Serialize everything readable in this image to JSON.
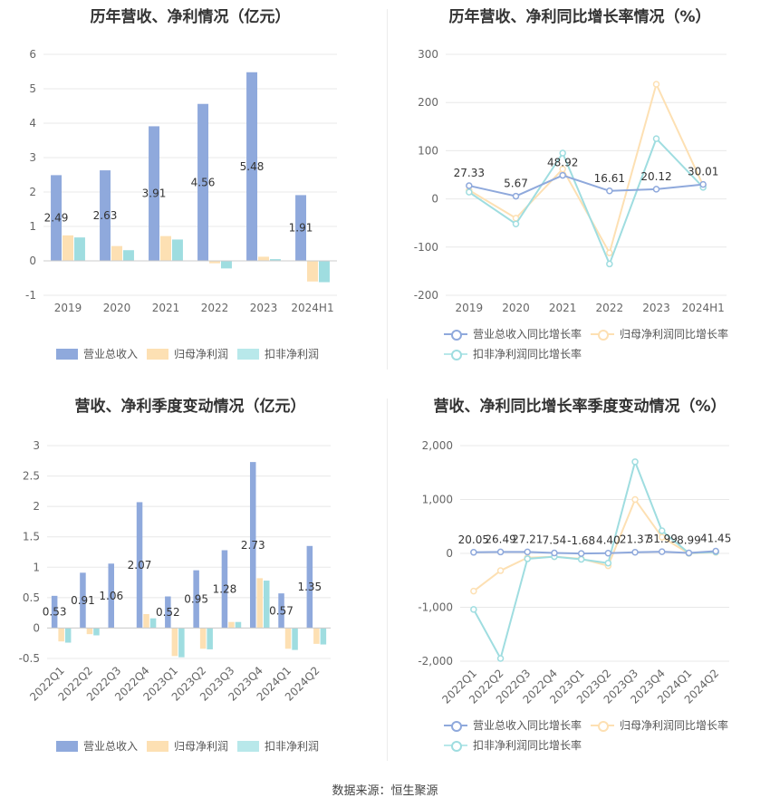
{
  "colors": {
    "revenue": "#8fa9dc",
    "profit": "#fde0b3",
    "deducted": "#9fdde0",
    "grid": "#e8e8e8",
    "axis": "#999999",
    "label": "#333333"
  },
  "source_note": "数据来源：恒生聚源",
  "chart_data": [
    {
      "id": "annual-amount",
      "type": "bar",
      "title": "历年营收、净利情况（亿元）",
      "categories": [
        "2019",
        "2020",
        "2021",
        "2022",
        "2023",
        "2024H1"
      ],
      "ylim": [
        -1,
        6
      ],
      "yticks": [
        -1,
        0,
        1,
        2,
        3,
        4,
        5,
        6
      ],
      "series": [
        {
          "name": "营业总收入",
          "values": [
            2.49,
            2.63,
            3.91,
            4.56,
            5.48,
            1.91
          ],
          "labels": [
            "2.49",
            "2.63",
            "3.91",
            "4.56",
            "5.48",
            "1.91"
          ]
        },
        {
          "name": "归母净利润",
          "values": [
            0.74,
            0.43,
            0.72,
            -0.07,
            0.12,
            -0.6
          ]
        },
        {
          "name": "扣非净利润",
          "values": [
            0.68,
            0.31,
            0.62,
            -0.22,
            0.05,
            -0.62
          ]
        }
      ],
      "legend": "bottom"
    },
    {
      "id": "annual-growth",
      "type": "line",
      "title": "历年营收、净利同比增长率情况（%）",
      "categories": [
        "2019",
        "2020",
        "2021",
        "2022",
        "2023",
        "2024H1"
      ],
      "ylim": [
        -200,
        300
      ],
      "yticks": [
        -200,
        -100,
        0,
        100,
        200,
        300
      ],
      "series": [
        {
          "name": "营业总收入同比增长率",
          "values": [
            27.33,
            5.67,
            48.92,
            16.61,
            20.12,
            30.01
          ],
          "labels": [
            "27.33",
            "5.67",
            "48.92",
            "16.61",
            "20.12",
            "30.01"
          ]
        },
        {
          "name": "归母净利润同比增长率",
          "values": [
            18,
            -40,
            62,
            -112,
            238,
            28
          ]
        },
        {
          "name": "扣非净利润同比增长率",
          "values": [
            14,
            -52,
            95,
            -135,
            125,
            24
          ]
        }
      ],
      "legend": "bottom"
    },
    {
      "id": "quarterly-amount",
      "type": "bar",
      "title": "营收、净利季度变动情况（亿元）",
      "categories": [
        "2022Q1",
        "2022Q2",
        "2022Q3",
        "2022Q4",
        "2023Q1",
        "2023Q2",
        "2023Q3",
        "2023Q4",
        "2024Q1",
        "2024Q2"
      ],
      "ylim": [
        -0.5,
        3
      ],
      "yticks": [
        -0.5,
        0,
        0.5,
        1,
        1.5,
        2,
        2.5,
        3
      ],
      "ytick_labels": [
        "-0.5",
        "0",
        "0.5",
        "1",
        "1.5",
        "2",
        "2.5",
        "3"
      ],
      "series": [
        {
          "name": "营业总收入",
          "values": [
            0.53,
            0.91,
            1.06,
            2.07,
            0.52,
            0.95,
            1.28,
            2.73,
            0.57,
            1.35
          ],
          "labels": [
            "0.53",
            "0.91",
            "1.06",
            "2.07",
            "0.52",
            "0.95",
            "1.28",
            "2.73",
            "0.57",
            "1.35"
          ]
        },
        {
          "name": "归母净利润",
          "values": [
            -0.22,
            -0.1,
            0.0,
            0.23,
            -0.46,
            -0.34,
            0.1,
            0.82,
            -0.34,
            -0.26
          ]
        },
        {
          "name": "扣非净利润",
          "values": [
            -0.24,
            -0.12,
            0.0,
            0.16,
            -0.48,
            -0.35,
            0.1,
            0.78,
            -0.36,
            -0.27
          ]
        }
      ],
      "legend": "bottom"
    },
    {
      "id": "quarterly-growth",
      "type": "line",
      "title": "营收、净利同比增长率季度变动情况（%）",
      "categories": [
        "2022Q1",
        "2022Q2",
        "2022Q3",
        "2022Q4",
        "2023Q1",
        "2023Q2",
        "2023Q3",
        "2023Q4",
        "2024Q1",
        "2024Q2"
      ],
      "ylim": [
        -2000,
        2000
      ],
      "yticks": [
        -2000,
        -1000,
        0,
        1000,
        2000
      ],
      "ytick_labels": [
        "-2,000",
        "-1,000",
        "0",
        "1,000",
        "2,000"
      ],
      "series": [
        {
          "name": "营业总收入同比增长率",
          "values": [
            20.05,
            26.49,
            27.21,
            7.54,
            -1.68,
            4.4,
            21.37,
            31.99,
            8.99,
            41.45
          ],
          "labels": [
            "20.05",
            "26.49",
            "27.21",
            "7.54",
            "-1.68",
            "4.40",
            "21.37",
            "31.99",
            "8.99",
            "41.45"
          ]
        },
        {
          "name": "归母净利润同比增长率",
          "values": [
            -700,
            -320,
            -80,
            -60,
            -100,
            -230,
            1000,
            300,
            0,
            20
          ]
        },
        {
          "name": "扣非净利润同比增长率",
          "values": [
            -1040,
            -1950,
            -100,
            -60,
            -110,
            -180,
            1700,
            420,
            5,
            25
          ]
        }
      ],
      "legend": "bottom"
    }
  ]
}
